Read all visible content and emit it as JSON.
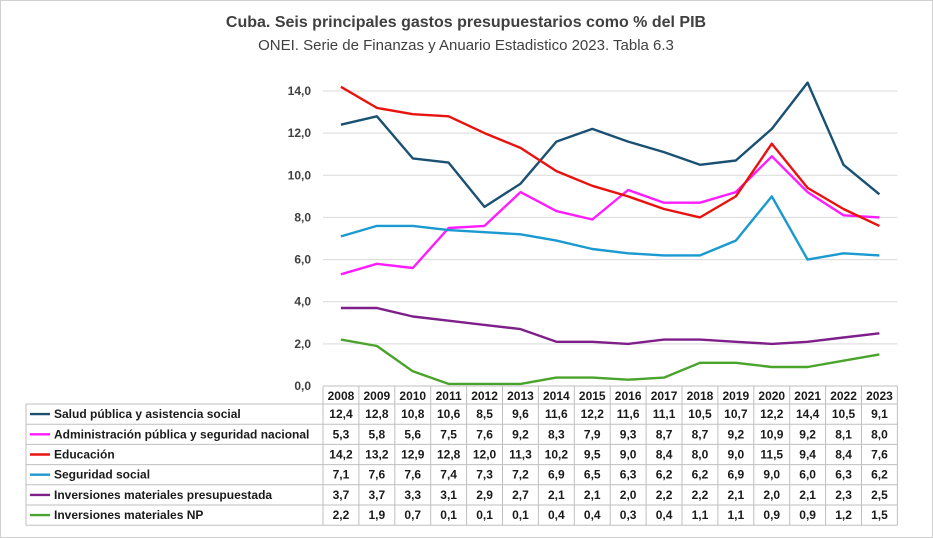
{
  "chart_data": {
    "type": "line",
    "title": "Cuba. Seis principales gastos presupuestarios como % del PIB",
    "subtitle": "ONEI. Serie de Finanzas y Anuario Estadistico 2023. Tabla 6.3",
    "ylim": [
      0,
      14
    ],
    "yticks": [
      "0,0",
      "2,0",
      "4,0",
      "6,0",
      "8,0",
      "10,0",
      "12,0",
      "14,0"
    ],
    "ytick_values": [
      0,
      2,
      4,
      6,
      8,
      10,
      12,
      14
    ],
    "grid": true,
    "legend": "data-table-below",
    "categories": [
      "2008",
      "2009",
      "2010",
      "2011",
      "2012",
      "2013",
      "2014",
      "2015",
      "2016",
      "2017",
      "2018",
      "2019",
      "2020",
      "2021",
      "2022",
      "2023"
    ],
    "series": [
      {
        "name": "Salud pública y asistencia social",
        "color": "#1a5172",
        "values": [
          12.4,
          12.8,
          10.8,
          10.6,
          8.5,
          9.6,
          11.6,
          12.2,
          11.6,
          11.1,
          10.5,
          10.7,
          12.2,
          14.4,
          10.5,
          9.1
        ],
        "labels": [
          "12,4",
          "12,8",
          "10,8",
          "10,6",
          "8,5",
          "9,6",
          "11,6",
          "12,2",
          "11,6",
          "11,1",
          "10,5",
          "10,7",
          "12,2",
          "14,4",
          "10,5",
          "9,1"
        ]
      },
      {
        "name": "Administración pública y seguridad nacional",
        "color": "#ff1cff",
        "values": [
          5.3,
          5.8,
          5.6,
          7.5,
          7.6,
          9.2,
          8.3,
          7.9,
          9.3,
          8.7,
          8.7,
          9.2,
          10.9,
          9.2,
          8.1,
          8.0
        ],
        "labels": [
          "5,3",
          "5,8",
          "5,6",
          "7,5",
          "7,6",
          "9,2",
          "8,3",
          "7,9",
          "9,3",
          "8,7",
          "8,7",
          "9,2",
          "10,9",
          "9,2",
          "8,1",
          "8,0"
        ]
      },
      {
        "name": "Educación",
        "color": "#e8120f",
        "values": [
          14.2,
          13.2,
          12.9,
          12.8,
          12.0,
          11.3,
          10.2,
          9.5,
          9.0,
          8.4,
          8.0,
          9.0,
          11.5,
          9.4,
          8.4,
          7.6
        ],
        "labels": [
          "14,2",
          "13,2",
          "12,9",
          "12,8",
          "12,0",
          "11,3",
          "10,2",
          "9,5",
          "9,0",
          "8,4",
          "8,0",
          "9,0",
          "11,5",
          "9,4",
          "8,4",
          "7,6"
        ]
      },
      {
        "name": "Seguridad social",
        "color": "#1a9ad0",
        "values": [
          7.1,
          7.6,
          7.6,
          7.4,
          7.3,
          7.2,
          6.9,
          6.5,
          6.3,
          6.2,
          6.2,
          6.9,
          9.0,
          6.0,
          6.3,
          6.2
        ],
        "labels": [
          "7,1",
          "7,6",
          "7,6",
          "7,4",
          "7,3",
          "7,2",
          "6,9",
          "6,5",
          "6,3",
          "6,2",
          "6,2",
          "6,9",
          "9,0",
          "6,0",
          "6,3",
          "6,2"
        ]
      },
      {
        "name": "Inversiones materiales presupuestada",
        "color": "#7f1f8a",
        "values": [
          3.7,
          3.7,
          3.3,
          3.1,
          2.9,
          2.7,
          2.1,
          2.1,
          2.0,
          2.2,
          2.2,
          2.1,
          2.0,
          2.1,
          2.3,
          2.5
        ],
        "labels": [
          "3,7",
          "3,7",
          "3,3",
          "3,1",
          "2,9",
          "2,7",
          "2,1",
          "2,1",
          "2,0",
          "2,2",
          "2,2",
          "2,1",
          "2,0",
          "2,1",
          "2,3",
          "2,5"
        ]
      },
      {
        "name": "Inversiones materiales NP",
        "color": "#4aa32b",
        "values": [
          2.2,
          1.9,
          0.7,
          0.1,
          0.1,
          0.1,
          0.4,
          0.4,
          0.3,
          0.4,
          1.1,
          1.1,
          0.9,
          0.9,
          1.2,
          1.5
        ],
        "labels": [
          "2,2",
          "1,9",
          "0,7",
          "0,1",
          "0,1",
          "0,1",
          "0,4",
          "0,4",
          "0,3",
          "0,4",
          "1,1",
          "1,1",
          "0,9",
          "0,9",
          "1,2",
          "1,5"
        ]
      }
    ]
  }
}
